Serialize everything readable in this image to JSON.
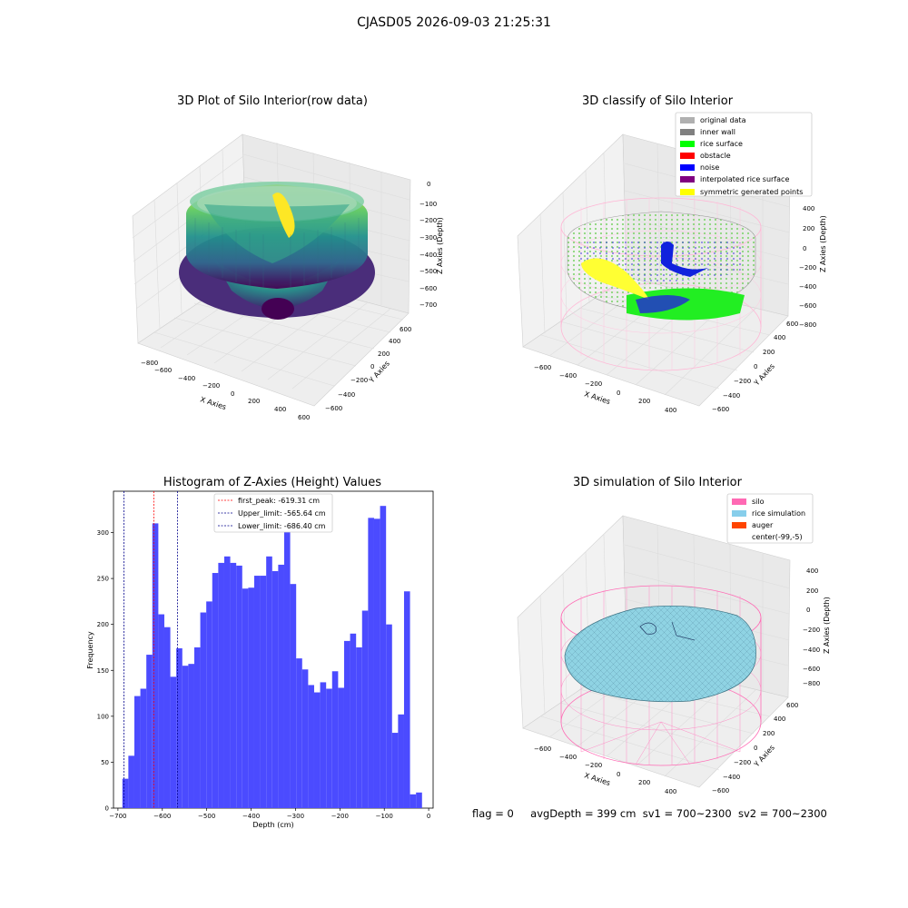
{
  "suptitle": "CJASD05 2026-09-03 21:25:31",
  "panels": {
    "raw": {
      "title": "3D Plot of Silo Interior(row data)",
      "xlabel": "X Axies",
      "ylabel": "Y Axies",
      "zlabel": "Z Axies (Depth)",
      "xticks": [
        "−800",
        "−600",
        "−400",
        "−200",
        "0",
        "200",
        "400",
        "600"
      ],
      "yticks": [
        "−600",
        "−400",
        "−200",
        "0",
        "200",
        "400",
        "600"
      ],
      "zticks": [
        "0",
        "−100",
        "−200",
        "−300",
        "−400",
        "−500",
        "−600",
        "−700"
      ]
    },
    "classify": {
      "title": "3D classify of Silo Interior",
      "xlabel": "X Axies",
      "ylabel": "Y Axies",
      "zlabel": "Z Axies (Depth)",
      "xticks": [
        "−600",
        "−400",
        "−200",
        "0",
        "200",
        "400"
      ],
      "yticks": [
        "−600",
        "−400",
        "−200",
        "0",
        "200",
        "400",
        "600"
      ],
      "zticks": [
        "400",
        "200",
        "0",
        "−200",
        "−400",
        "−600",
        "−800"
      ],
      "legend": [
        {
          "label": "original data",
          "color": "#b0b0b0"
        },
        {
          "label": "inner wall",
          "color": "#808080"
        },
        {
          "label": "rice surface",
          "color": "#00ff00"
        },
        {
          "label": "obstacle",
          "color": "#ff0000"
        },
        {
          "label": "noise",
          "color": "#0000ff"
        },
        {
          "label": "interpolated rice surface",
          "color": "#800080"
        },
        {
          "label": "symmetric generated points",
          "color": "#ffff00"
        }
      ]
    },
    "simulation": {
      "title": "3D simulation of Silo Interior",
      "xlabel": "X Axies",
      "ylabel": "Y Axies",
      "zlabel": "Z Axies (Depth)",
      "xticks": [
        "−600",
        "−400",
        "−200",
        "0",
        "200",
        "400"
      ],
      "yticks": [
        "−600",
        "−400",
        "−200",
        "0",
        "200",
        "400",
        "600"
      ],
      "zticks": [
        "400",
        "200",
        "0",
        "−200",
        "−400",
        "−600",
        "−800"
      ],
      "legend": [
        {
          "label": "silo",
          "color": "#ff69b4"
        },
        {
          "label": "rice simulation",
          "color": "#87ceeb"
        },
        {
          "label": "auger",
          "color": "#ff4500"
        },
        {
          "label": "center(-99,-5)",
          "color": "#ffffff"
        }
      ]
    }
  },
  "chart_data": [
    {
      "type": "bar",
      "title": "Histogram of Z-Axies (Height) Values",
      "xlabel": "Depth (cm)",
      "ylabel": "Frequency",
      "bin_width": 13.5,
      "bin_start": -690,
      "values": [
        32,
        57,
        122,
        130,
        167,
        310,
        211,
        197,
        143,
        174,
        155,
        157,
        175,
        213,
        225,
        256,
        267,
        274,
        267,
        264,
        239,
        240,
        253,
        253,
        274,
        258,
        265,
        318,
        244,
        163,
        151,
        134,
        126,
        137,
        130,
        149,
        131,
        182,
        190,
        175,
        215,
        316,
        315,
        329,
        200,
        82,
        102,
        236,
        15,
        17
      ],
      "xlim": [
        -710,
        10
      ],
      "ylim": [
        0,
        345
      ],
      "xticks": [
        "−700",
        "−600",
        "−500",
        "−400",
        "−300",
        "−200",
        "−100",
        "0"
      ],
      "yticks": [
        "0",
        "50",
        "100",
        "150",
        "200",
        "250",
        "300"
      ],
      "bar_color": "#4b4bff",
      "vlines": [
        {
          "label": "first_peak: -619.31 cm",
          "x": -619.31,
          "color": "#ff0000"
        },
        {
          "label": "Upper_limit: -565.64 cm",
          "x": -565.64,
          "color": "#00008b"
        },
        {
          "label": "Lower_limit: -686.40 cm",
          "x": -686.4,
          "color": "#00008b"
        }
      ],
      "grid": false,
      "legend_placement": "top-center"
    }
  ],
  "status": {
    "flag": "flag = 0",
    "avg": "avgDepth = 399 cm",
    "sv1": "sv1 = 700~2300",
    "sv2": "sv2 = 700~2300"
  }
}
